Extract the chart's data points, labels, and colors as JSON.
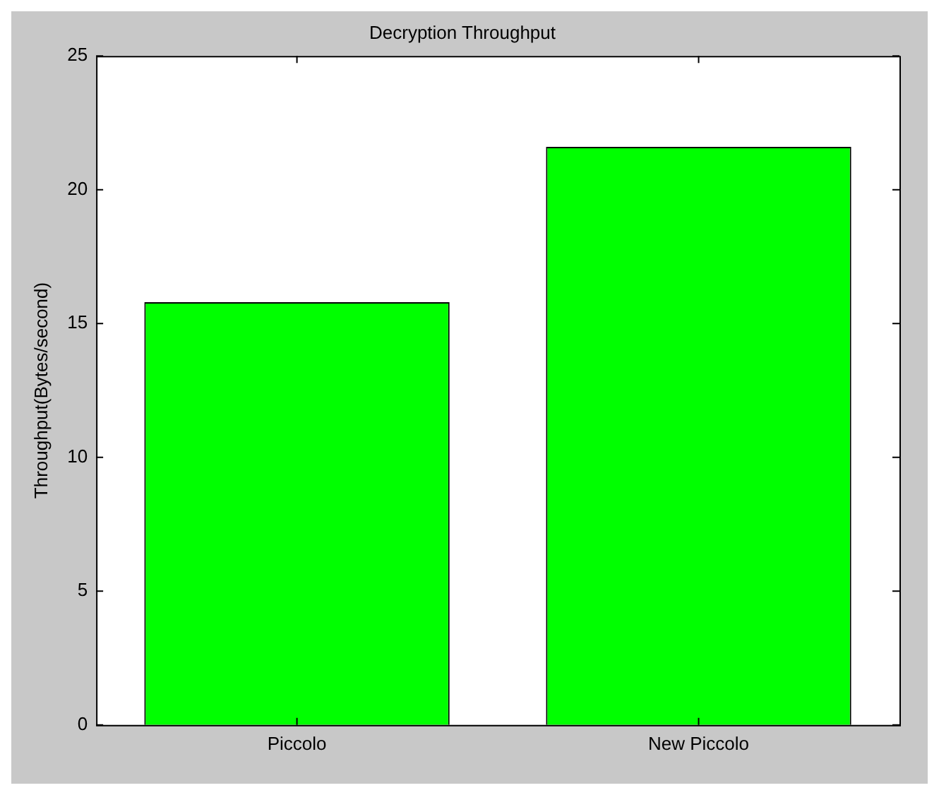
{
  "chart_data": {
    "type": "bar",
    "title": "Decryption Throughput",
    "ylabel": "Throughput(Bytes/second)",
    "categories": [
      "Piccolo",
      "New Piccolo"
    ],
    "values": [
      15.8,
      21.6
    ],
    "color": "#00ff00",
    "ylim": [
      0,
      25
    ],
    "yticks": [
      0,
      5,
      10,
      15,
      20,
      25
    ],
    "grid": false,
    "legend": false
  }
}
